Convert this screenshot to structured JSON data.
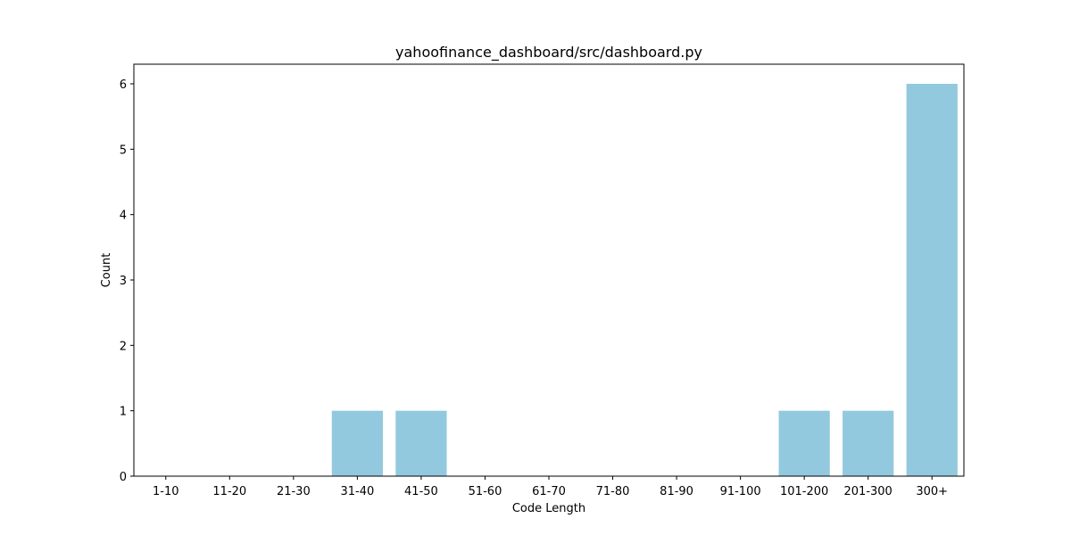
{
  "chart_data": {
    "type": "bar",
    "title": "yahoofinance_dashboard/src/dashboard.py",
    "xlabel": "Code Length",
    "ylabel": "Count",
    "categories": [
      "1-10",
      "11-20",
      "21-30",
      "31-40",
      "41-50",
      "51-60",
      "61-70",
      "71-80",
      "81-90",
      "91-100",
      "101-200",
      "201-300",
      "300+"
    ],
    "values": [
      0,
      0,
      0,
      1,
      1,
      0,
      0,
      0,
      0,
      0,
      1,
      1,
      6
    ],
    "ylim": [
      0,
      6.3
    ],
    "yticks": [
      0,
      1,
      2,
      3,
      4,
      5,
      6
    ],
    "grid": false,
    "legend": "none",
    "bar_color": "#92c9de"
  }
}
